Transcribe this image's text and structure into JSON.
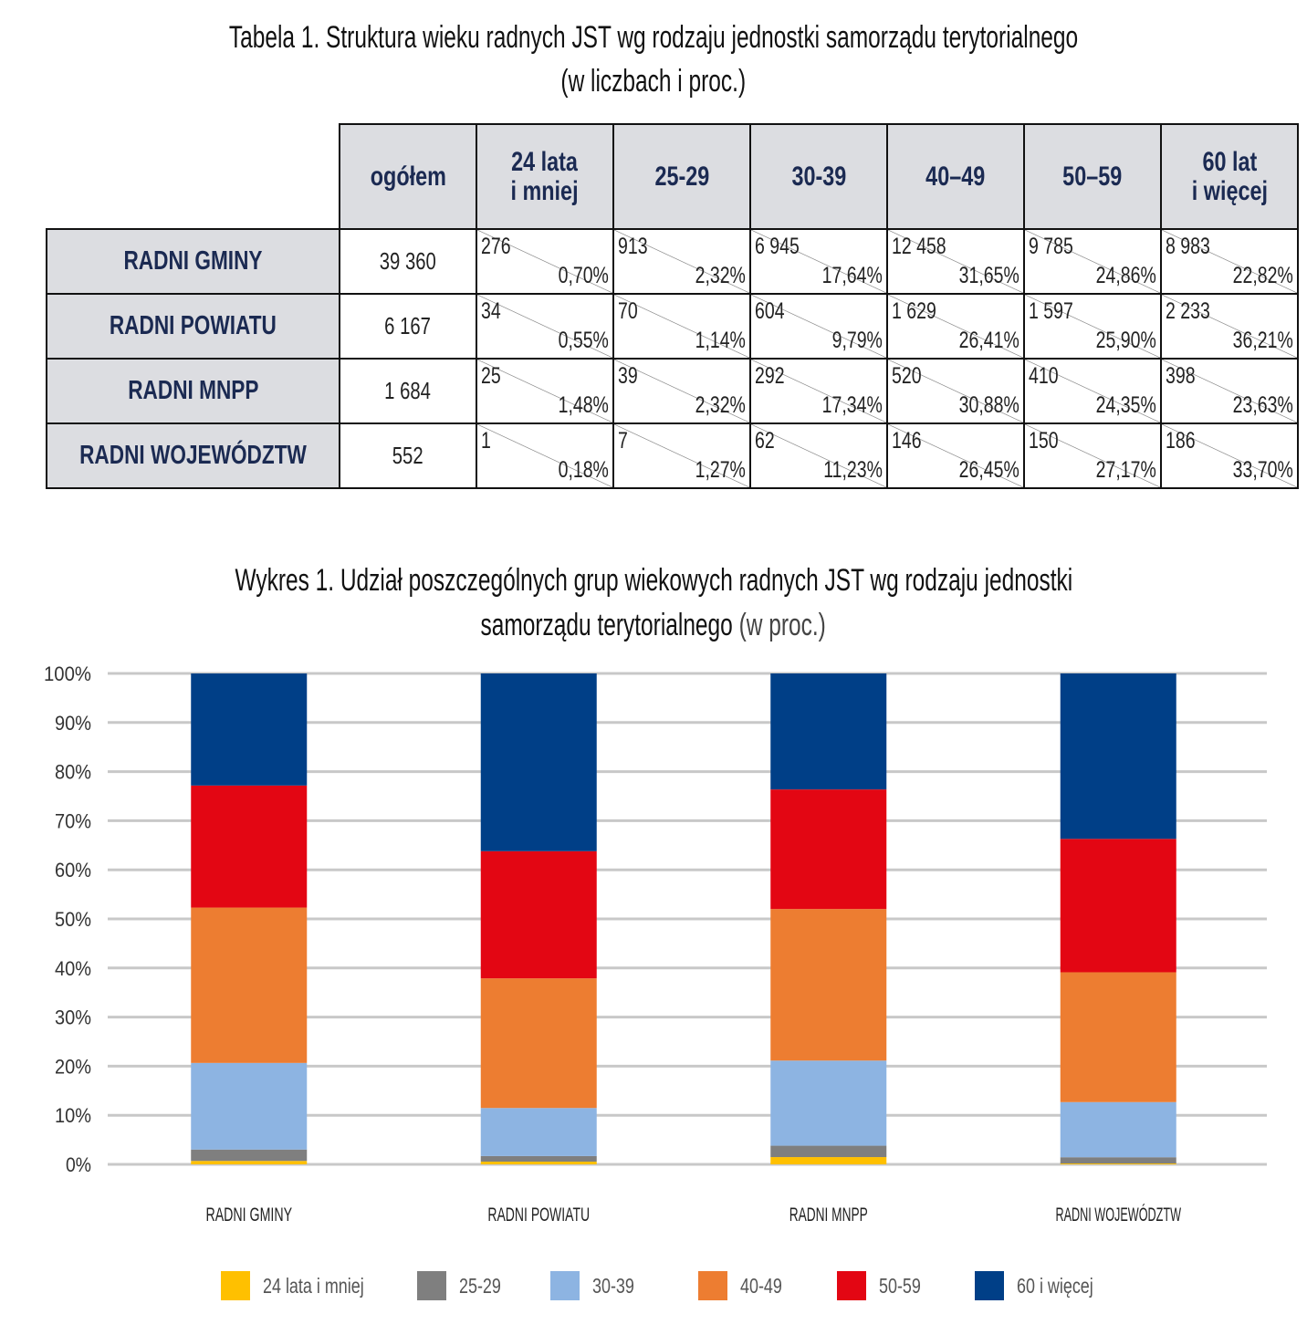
{
  "table": {
    "title": "Tabela 1. Struktura wieku radnych JST wg rodzaju jednostki samorządu terytorialnego",
    "subtitle": "(w liczbach i proc.)",
    "headers": [
      "ogółem",
      "24 lata i mniej",
      "25-29",
      "30-39",
      "40–49",
      "50–59",
      "60 lat i więcej"
    ],
    "rows": [
      {
        "label": "RADNI GMINY",
        "total": "39 360",
        "cells": [
          [
            "276",
            "0,70%"
          ],
          [
            "913",
            "2,32%"
          ],
          [
            "6 945",
            "17,64%"
          ],
          [
            "12 458",
            "31,65%"
          ],
          [
            "9 785",
            "24,86%"
          ],
          [
            "8 983",
            "22,82%"
          ]
        ]
      },
      {
        "label": "RADNI POWIATU",
        "total": "6 167",
        "cells": [
          [
            "34",
            "0,55%"
          ],
          [
            "70",
            "1,14%"
          ],
          [
            "604",
            "9,79%"
          ],
          [
            "1 629",
            "26,41%"
          ],
          [
            "1 597",
            "25,90%"
          ],
          [
            "2 233",
            "36,21%"
          ]
        ]
      },
      {
        "label": "RADNI MNPP",
        "total": "1 684",
        "cells": [
          [
            "25",
            "1,48%"
          ],
          [
            "39",
            "2,32%"
          ],
          [
            "292",
            "17,34%"
          ],
          [
            "520",
            "30,88%"
          ],
          [
            "410",
            "24,35%"
          ],
          [
            "398",
            "23,63%"
          ]
        ]
      },
      {
        "label": "RADNI WOJEWÓDZTW",
        "total": "552",
        "cells": [
          [
            "1",
            "0,18%"
          ],
          [
            "7",
            "1,27%"
          ],
          [
            "62",
            "11,23%"
          ],
          [
            "146",
            "26,45%"
          ],
          [
            "150",
            "27,17%"
          ],
          [
            "186",
            "33,70%"
          ]
        ]
      }
    ]
  },
  "chart_data": {
    "type": "bar",
    "stacked": true,
    "title": "Wykres 1. Udział poszczególnych grup wiekowych radnych JST wg rodzaju jednostki",
    "title_line2": "samorządu terytorialnego",
    "title_suffix": "(w proc.)",
    "categories": [
      "RADNI GMINY",
      "RADNI POWIATU",
      "RADNI MNPP",
      "RADNI WOJEWÓDZTW"
    ],
    "ylim": [
      0,
      100
    ],
    "yticks": [
      "0%",
      "10%",
      "20%",
      "30%",
      "40%",
      "50%",
      "60%",
      "70%",
      "80%",
      "90%",
      "100%"
    ],
    "grid": true,
    "legend_position": "bottom",
    "series": [
      {
        "name": "24 lata i mniej",
        "color": "#FFC000",
        "values": [
          0.7,
          0.55,
          1.48,
          0.18
        ]
      },
      {
        "name": "25-29",
        "color": "#7F7F7F",
        "values": [
          2.32,
          1.14,
          2.32,
          1.27
        ]
      },
      {
        "name": "30-39",
        "color": "#8DB4E2",
        "values": [
          17.64,
          9.79,
          17.34,
          11.23
        ]
      },
      {
        "name": "40-49",
        "color": "#ED7D31",
        "values": [
          31.65,
          26.41,
          30.88,
          26.45
        ]
      },
      {
        "name": "50-59",
        "color": "#E30613",
        "values": [
          24.86,
          25.9,
          24.35,
          27.17
        ]
      },
      {
        "name": "60 i więcej",
        "color": "#003F87",
        "values": [
          22.82,
          36.21,
          23.63,
          33.7
        ]
      }
    ]
  }
}
